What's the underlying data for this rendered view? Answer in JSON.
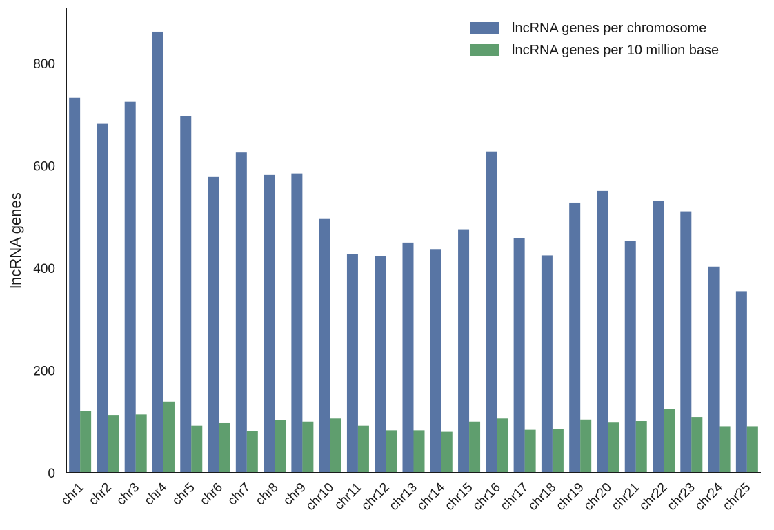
{
  "chart_data": {
    "type": "bar",
    "title": "",
    "xlabel": "",
    "ylabel": "lncRNA genes",
    "ylim": [
      0,
      910
    ],
    "yticks": [
      0,
      200,
      400,
      600,
      800
    ],
    "grid": false,
    "legend_position": "top-right",
    "categories": [
      "chr1",
      "chr2",
      "chr3",
      "chr4",
      "chr5",
      "chr6",
      "chr7",
      "chr8",
      "chr9",
      "chr10",
      "chr11",
      "chr12",
      "chr13",
      "chr14",
      "chr15",
      "chr16",
      "chr17",
      "chr18",
      "chr19",
      "chr20",
      "chr21",
      "chr22",
      "chr23",
      "chr24",
      "chr25"
    ],
    "series": [
      {
        "name": "lncRNA genes per chromosome",
        "color": "#5875a4",
        "values": [
          733,
          682,
          725,
          862,
          697,
          578,
          626,
          582,
          585,
          496,
          428,
          424,
          450,
          436,
          476,
          628,
          458,
          425,
          528,
          551,
          453,
          532,
          511,
          403,
          355
        ]
      },
      {
        "name": "lncRNA genes per 10 million base",
        "color": "#5f9e6e",
        "values": [
          121,
          113,
          114,
          139,
          92,
          97,
          81,
          103,
          100,
          106,
          92,
          83,
          83,
          80,
          100,
          106,
          84,
          85,
          104,
          98,
          101,
          125,
          109,
          91,
          91
        ]
      }
    ]
  }
}
